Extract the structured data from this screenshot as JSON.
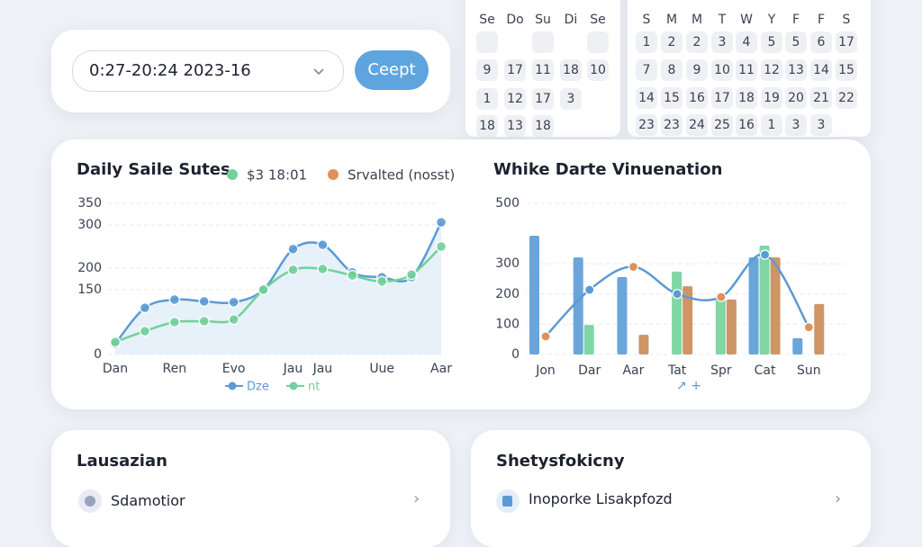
{
  "date_input": {
    "value": "0:27-20:24 2023-16",
    "button": "Ceept"
  },
  "calendar_left": {
    "headers": [
      "Se",
      "Do",
      "Su",
      "Di",
      "Se"
    ],
    "rows": [
      [
        "9",
        "17",
        "11",
        "18",
        "10"
      ],
      [
        "1",
        "12",
        "17",
        "3"
      ],
      [
        "18",
        "13",
        "18"
      ]
    ]
  },
  "calendar_right": {
    "headers": [
      "S",
      "M",
      "M",
      "T",
      "W",
      "Y",
      "F",
      "F",
      "S"
    ],
    "rows": [
      [
        "1",
        "2",
        "2",
        "3",
        "4",
        "5",
        "5",
        "6",
        "17"
      ],
      [
        "7",
        "8",
        "9",
        "10",
        "11",
        "12",
        "13",
        "14",
        "15"
      ],
      [
        "14",
        "15",
        "16",
        "17",
        "18",
        "19",
        "20",
        "21",
        "22"
      ],
      [
        "23",
        "23",
        "24",
        "25",
        "16",
        "1",
        "3",
        "3"
      ]
    ]
  },
  "chart_data": [
    {
      "type": "line",
      "title": "Daily Saile Sutes",
      "annotations": [
        "$3 18:01",
        "Srvalted (nosst)"
      ],
      "categories": [
        "Dan",
        null,
        "Ren",
        null,
        "Evo",
        null,
        "Jau",
        "Jau",
        null,
        "Uue",
        null,
        "Aar"
      ],
      "series": [
        {
          "name": "Dze",
          "color": "#5b9bd5",
          "values": [
            25,
            108,
            127,
            123,
            121,
            150,
            244,
            254,
            190,
            179,
            179,
            306
          ]
        },
        {
          "name": "nt",
          "color": "#72d19a",
          "values": [
            29,
            54,
            75,
            77,
            81,
            150,
            196,
            198,
            183,
            169,
            185,
            250
          ]
        }
      ],
      "ylim": [
        0,
        350
      ],
      "yticks": [
        0,
        150,
        200,
        300,
        350
      ],
      "grid": true
    },
    {
      "type": "bar",
      "title": "Whike Darte Vinuenation",
      "categories": [
        "Jon",
        "Dar",
        "Aar",
        "Tat",
        "Spr",
        "Cat",
        "Sun"
      ],
      "series": [
        {
          "color": "#5b9bd5",
          "values": [
            393,
            321,
            256,
            null,
            null,
            321,
            54
          ]
        },
        {
          "color": "#72d19a",
          "values": [
            null,
            98,
            null,
            274,
            182,
            360,
            null
          ]
        },
        {
          "color": "#c98a55",
          "values": [
            null,
            null,
            65,
            226,
            182,
            321,
            167
          ]
        },
        {
          "color": "#5b9bd5",
          "line": true,
          "values": [
            60,
            214,
            290,
            200,
            190,
            330,
            90
          ]
        }
      ],
      "ylim": [
        0,
        500
      ],
      "yticks": [
        0,
        100,
        200,
        300,
        500
      ],
      "grid": true
    }
  ],
  "panels": [
    {
      "title": "Lausazian",
      "item": "Sdamotior"
    },
    {
      "title": "Shetysfokicny",
      "item": "Inoporke Lisakpfozd"
    }
  ]
}
